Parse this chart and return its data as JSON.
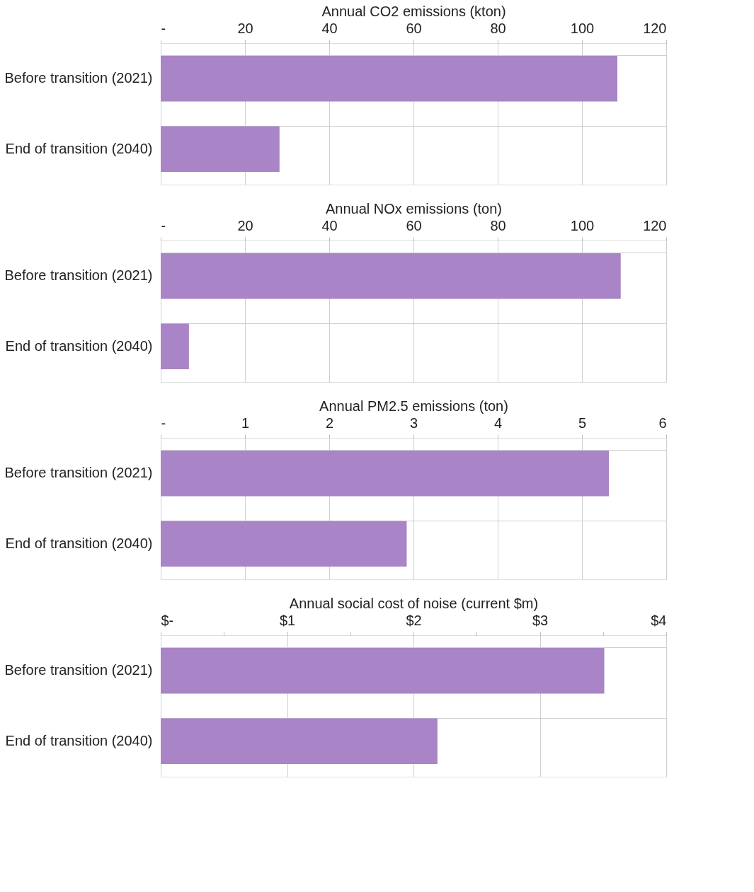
{
  "chart_data": [
    {
      "type": "bar",
      "orientation": "horizontal",
      "xlabel": "Annual CO2 emissions (kton)",
      "categories": [
        "Before transition (2021)",
        "End of transition (2040)"
      ],
      "series": [
        {
          "color": "#a984c6",
          "values": [
            108.4,
            28.2
          ]
        }
      ],
      "xlim": [
        0,
        120
      ],
      "xticks": [
        {
          "value": 0,
          "label": "-"
        },
        20,
        40,
        60,
        80,
        100,
        120
      ],
      "grid": true
    },
    {
      "type": "bar",
      "orientation": "horizontal",
      "xlabel": "Annual NOx emissions (ton)",
      "categories": [
        "Before transition (2021)",
        "End of transition (2040)"
      ],
      "series": [
        {
          "color": "#a984c6",
          "values": [
            109.2,
            6.7
          ]
        }
      ],
      "xlim": [
        0,
        120
      ],
      "xticks": [
        {
          "value": 0,
          "label": "-"
        },
        20,
        40,
        60,
        80,
        100,
        120
      ],
      "grid": true
    },
    {
      "type": "bar",
      "orientation": "horizontal",
      "xlabel": "Annual PM2.5 emissions (ton)",
      "categories": [
        "Before transition (2021)",
        "End of transition (2040)"
      ],
      "series": [
        {
          "color": "#a984c6",
          "values": [
            5.32,
            2.92
          ]
        }
      ],
      "xlim": [
        0,
        6
      ],
      "xticks": [
        {
          "value": 0,
          "label": "-"
        },
        1,
        2,
        3,
        4,
        5,
        6
      ],
      "grid": true
    },
    {
      "type": "bar",
      "orientation": "horizontal",
      "xlabel": "Annual social cost of noise (current $m)",
      "categories": [
        "Before transition (2021)",
        "End of transition (2040)"
      ],
      "series": [
        {
          "color": "#a984c6",
          "values": [
            3.51,
            2.19
          ]
        }
      ],
      "xlim": [
        0,
        4
      ],
      "xticks": [
        {
          "value": 0,
          "label": "$-"
        },
        {
          "value": 0.5,
          "label": null
        },
        {
          "value": 1,
          "label": "$1"
        },
        {
          "value": 1.5,
          "label": null
        },
        {
          "value": 2,
          "label": "$2"
        },
        {
          "value": 2.5,
          "label": null
        },
        {
          "value": 3,
          "label": "$3"
        },
        {
          "value": 3.5,
          "label": null
        },
        {
          "value": 4,
          "label": "$4"
        }
      ],
      "grid": true
    }
  ]
}
